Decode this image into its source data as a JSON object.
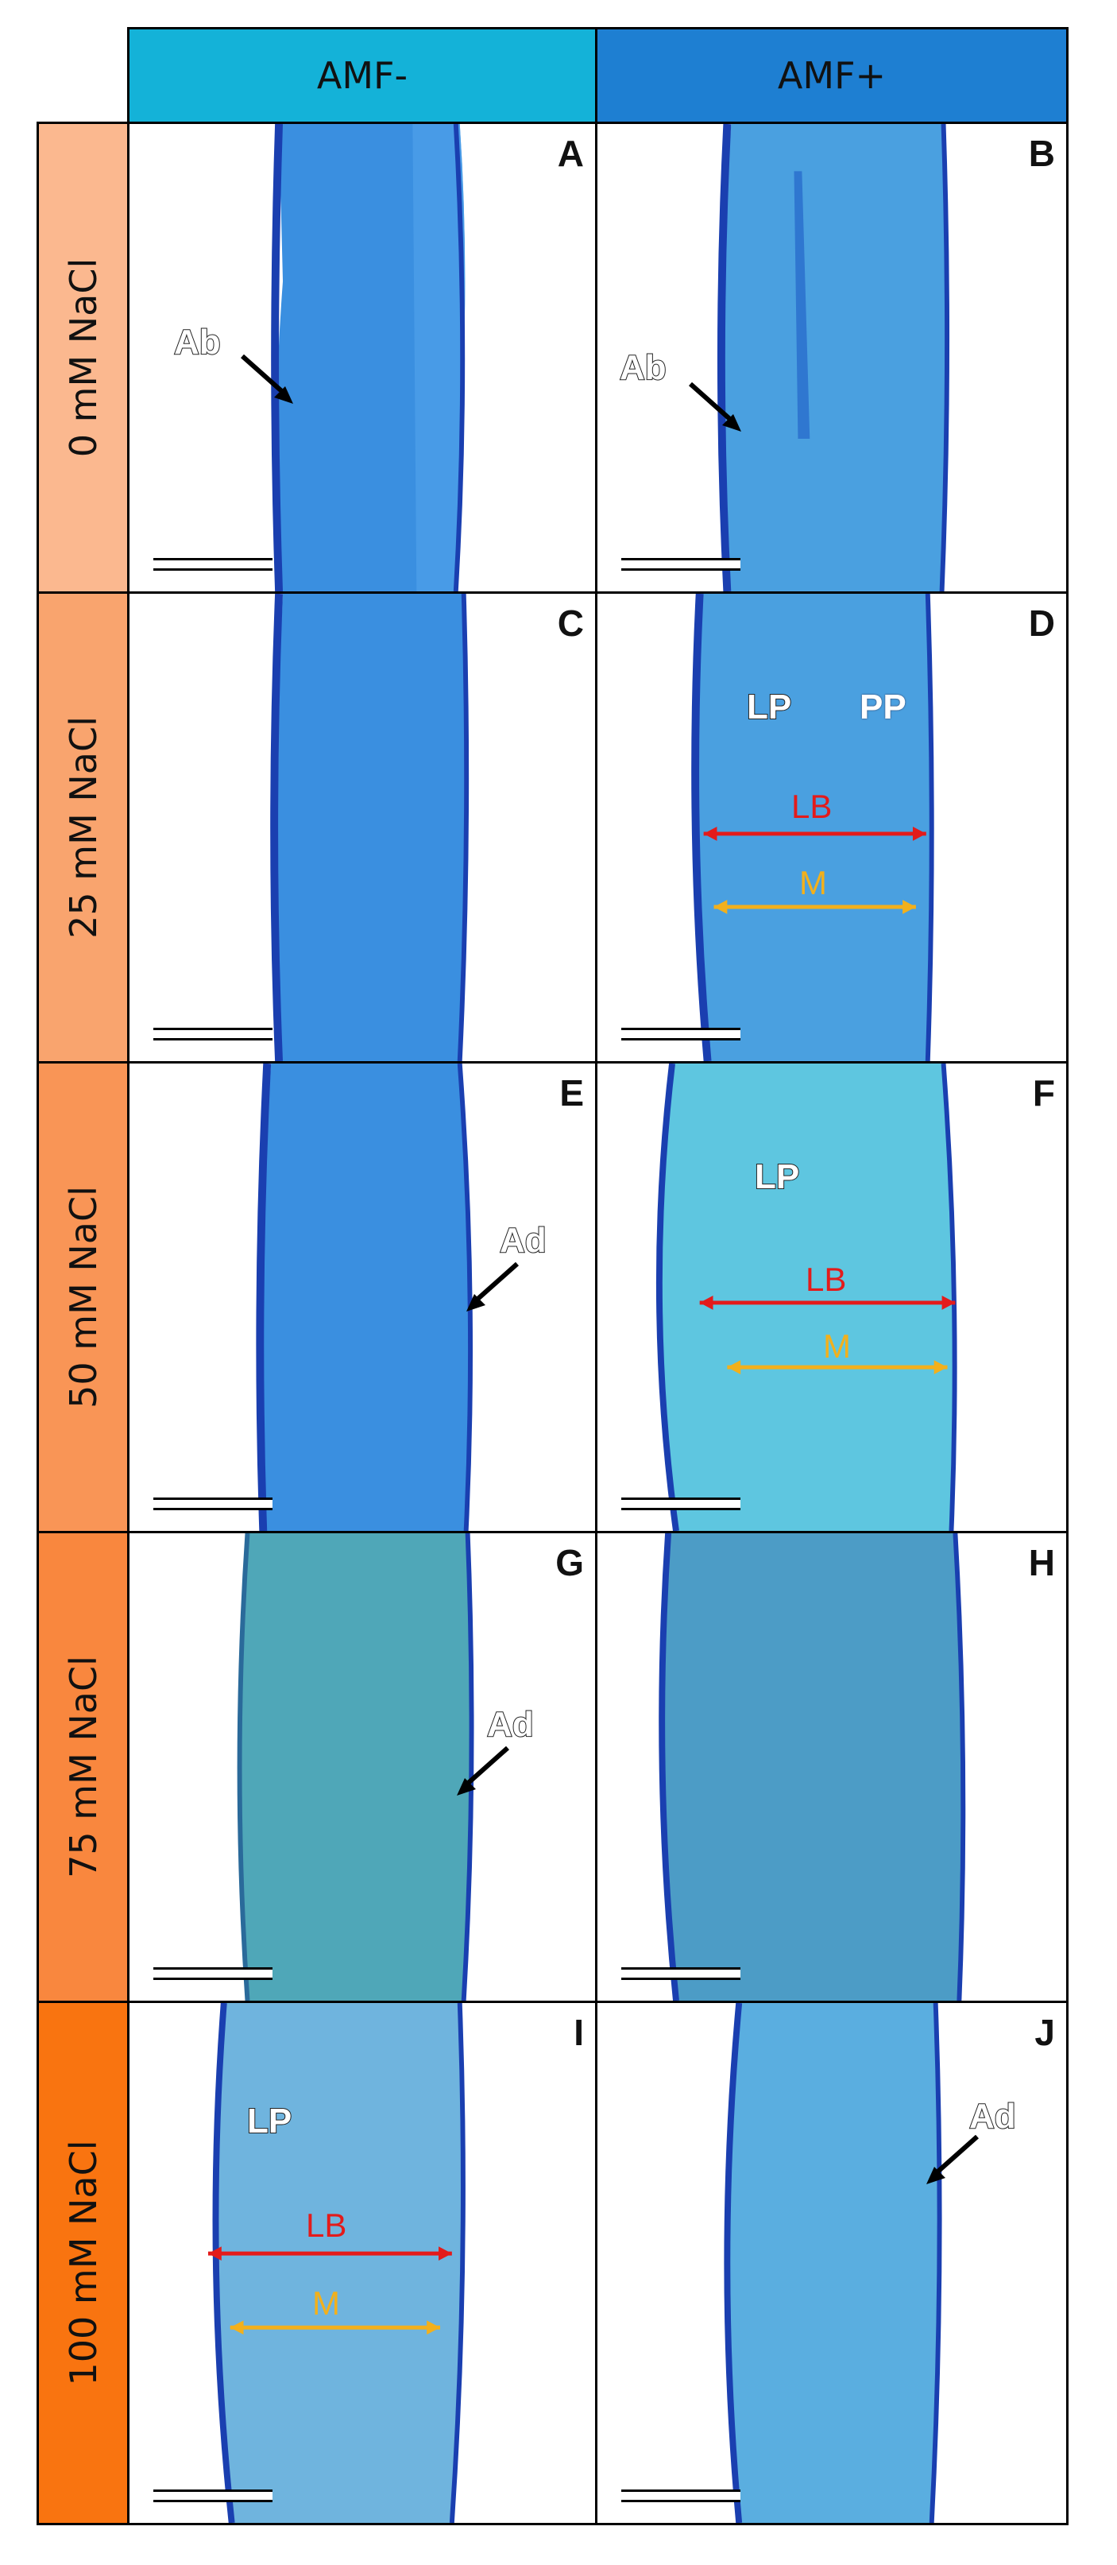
{
  "columns": [
    {
      "label": "AMF-",
      "color": "#14b2d8"
    },
    {
      "label": "AMF+",
      "color": "#1e7fd2"
    }
  ],
  "rows": [
    {
      "label": "0 mM NaCl",
      "color": "#fbb88f"
    },
    {
      "label": "25 mM NaCl",
      "color": "#f9a46e"
    },
    {
      "label": "50 mM NaCl",
      "color": "#f99556"
    },
    {
      "label": "75 mM NaCl",
      "color": "#f9873e"
    },
    {
      "label": "100 mM NaCl",
      "color": "#f97410"
    }
  ],
  "panels": [
    {
      "letter": "A",
      "annotations": [
        "Ab"
      ]
    },
    {
      "letter": "B",
      "annotations": [
        "Ab"
      ]
    },
    {
      "letter": "C",
      "annotations": []
    },
    {
      "letter": "D",
      "annotations": [
        "LP",
        "PP",
        "LB",
        "M"
      ]
    },
    {
      "letter": "E",
      "annotations": [
        "Ad"
      ]
    },
    {
      "letter": "F",
      "annotations": [
        "LP",
        "LB",
        "M"
      ]
    },
    {
      "letter": "G",
      "annotations": [
        "Ad"
      ]
    },
    {
      "letter": "H",
      "annotations": []
    },
    {
      "letter": "I",
      "annotations": [
        "LP",
        "LB",
        "M"
      ]
    },
    {
      "letter": "J",
      "annotations": [
        "Ad"
      ]
    }
  ],
  "colors": {
    "tissue_blue": "#2a7fd6",
    "tissue_dark": "#1a3fb0",
    "tissue_teal": "#3fb0c8",
    "lb_arrow": "#e31b1b",
    "m_arrow": "#f2b01c"
  }
}
